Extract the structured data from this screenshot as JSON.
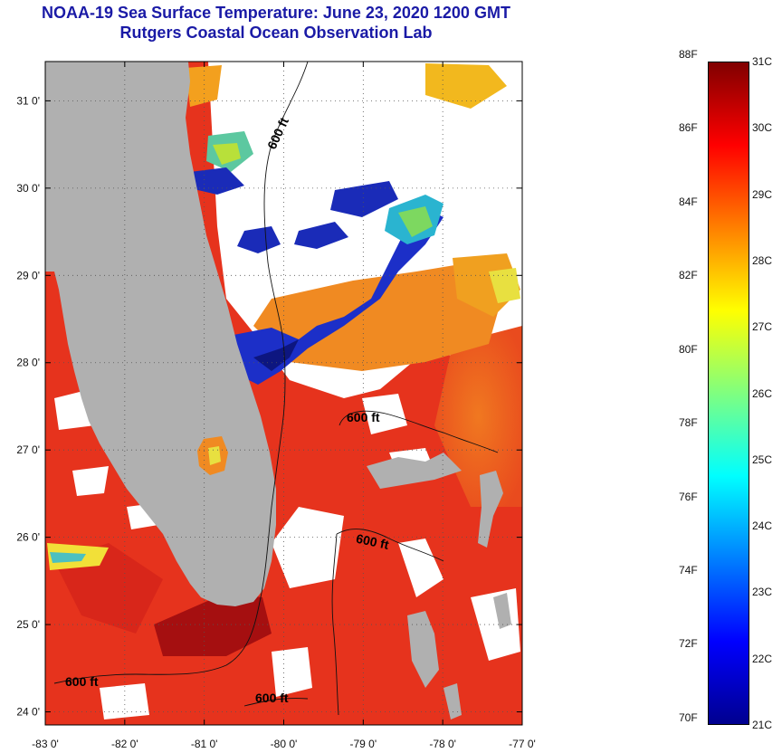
{
  "title": {
    "line1": "NOAA-19 Sea Surface Temperature:  June 23, 2020 1200 GMT",
    "line2": "Rutgers Coastal Ocean Observation Lab"
  },
  "map": {
    "lat_labels": [
      "31 0'",
      "30 0'",
      "29 0'",
      "28 0'",
      "27 0'",
      "26 0'",
      "25 0'",
      "24 0'"
    ],
    "lon_labels": [
      "-83 0'",
      "-82 0'",
      "-81 0'",
      "-80 0'",
      "-79 0'",
      "-78 0'",
      "-77 0'"
    ],
    "lat_range": [
      23.85,
      31.45
    ],
    "lon_range": [
      -83.0,
      -77.0
    ],
    "contour_label": "600 ft",
    "colors": {
      "land": "#b0b0b0",
      "cloud": "#ffffff",
      "warm": "#e8321e",
      "hot": "#9a0d0d"
    }
  },
  "colorbar": {
    "f_labels": [
      "88F",
      "86F",
      "84F",
      "82F",
      "80F",
      "78F",
      "76F",
      "74F",
      "72F",
      "70F"
    ],
    "c_labels": [
      "31C",
      "30C",
      "29C",
      "28C",
      "27C",
      "26C",
      "25C",
      "24C",
      "23C",
      "22C",
      "21C"
    ],
    "range_c": [
      21,
      31
    ]
  }
}
